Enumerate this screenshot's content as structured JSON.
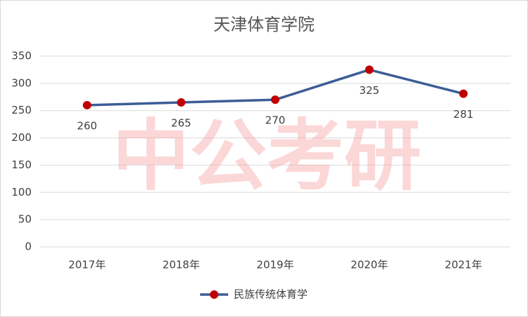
{
  "chart_data": {
    "type": "line",
    "title": "天津体育学院",
    "watermark": "中公考研",
    "categories": [
      "2017年",
      "2018年",
      "2019年",
      "2020年",
      "2021年"
    ],
    "series": [
      {
        "name": "民族传统体育学",
        "color": "#3c5d96",
        "marker_color": "#c00000",
        "values": [
          260,
          265,
          270,
          325,
          281
        ]
      }
    ],
    "ylim": [
      0,
      350
    ],
    "yticks": [
      0,
      50,
      100,
      150,
      200,
      250,
      300,
      350
    ],
    "grid": true,
    "legend": "bottom"
  }
}
